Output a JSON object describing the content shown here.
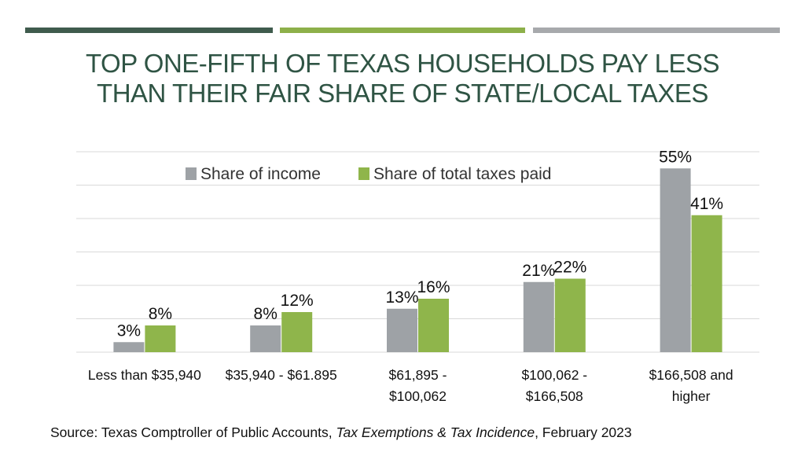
{
  "colors": {
    "bar_dark": "#3f5b4d",
    "bar_green": "#8db04a",
    "bar_gray": "#a7a9ac",
    "title": "#2f5444",
    "income": "#9ea2a6",
    "taxes": "#8fb54b",
    "grid": "#d9d9d9",
    "text": "#111111"
  },
  "title_lines": [
    "TOP ONE-FIFTH OF TEXAS HOUSEHOLDS PAY LESS",
    "THAN THEIR FAIR SHARE OF STATE/LOCAL TAXES"
  ],
  "source": {
    "prefix": "Source:  Texas Comptroller of Public Accounts, ",
    "publication": "Tax Exemptions & Tax Incidence",
    "suffix": ", February 2023"
  },
  "chart_data": {
    "type": "bar",
    "title": "TOP ONE-FIFTH OF TEXAS HOUSEHOLDS PAY LESS THAN THEIR FAIR SHARE OF STATE/LOCAL TAXES",
    "categories": [
      [
        "Less than $35,940"
      ],
      [
        "$35,940 - $61.895"
      ],
      [
        "$61,895 -",
        "$100,062"
      ],
      [
        "$100,062 -",
        "$166,508"
      ],
      [
        "$166,508 and",
        "higher"
      ]
    ],
    "series": [
      {
        "name": "Share of income",
        "values": [
          3,
          8,
          13,
          21,
          55
        ],
        "labels": [
          "3%",
          "8%",
          "13%",
          "21%",
          "55%"
        ]
      },
      {
        "name": "Share of total taxes paid",
        "values": [
          8,
          12,
          16,
          22,
          41
        ],
        "labels": [
          "8%",
          "12%",
          "16%",
          "22%",
          "41%"
        ]
      }
    ],
    "ylim": [
      0,
      60
    ],
    "grid": true,
    "legend_position": "top-left"
  }
}
